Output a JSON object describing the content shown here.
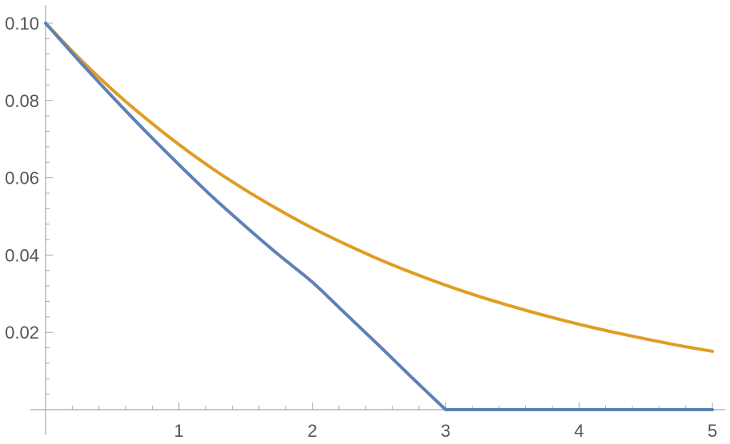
{
  "chart_data": {
    "type": "line",
    "title": "",
    "xlabel": "",
    "ylabel": "",
    "xlim": [
      0,
      5
    ],
    "ylim": [
      0,
      0.1
    ],
    "grid": false,
    "x_ticks": [
      {
        "value": 1,
        "label": "1"
      },
      {
        "value": 2,
        "label": "2"
      },
      {
        "value": 3,
        "label": "3"
      },
      {
        "value": 4,
        "label": "4"
      },
      {
        "value": 5,
        "label": "5"
      }
    ],
    "y_ticks": [
      {
        "value": 0.02,
        "label": "0.02"
      },
      {
        "value": 0.04,
        "label": "0.04"
      },
      {
        "value": 0.06,
        "label": "0.06"
      },
      {
        "value": 0.08,
        "label": "0.08"
      },
      {
        "value": 0.1,
        "label": "0.10"
      }
    ],
    "series": [
      {
        "color": "#5e81b5",
        "x": [
          0,
          0.25,
          0.5,
          0.75,
          1,
          1.25,
          1.5,
          1.75,
          2,
          2.25,
          2.5,
          2.75,
          3,
          3.5,
          4,
          4.5,
          5
        ],
        "y": [
          0.1,
          0.0903,
          0.081,
          0.072,
          0.0634,
          0.0551,
          0.0474,
          0.04,
          0.033,
          0.0248,
          0.0166,
          0.0082,
          0,
          0,
          0,
          0,
          0
        ]
      },
      {
        "color": "#e19c24",
        "x": [
          0,
          0.25,
          0.5,
          0.75,
          1,
          1.25,
          1.5,
          1.75,
          2,
          2.25,
          2.5,
          2.75,
          3,
          3.25,
          3.5,
          3.75,
          4,
          4.25,
          4.5,
          4.75,
          5
        ],
        "y": [
          0.1,
          0.091,
          0.0828,
          0.0754,
          0.0686,
          0.0624,
          0.0568,
          0.0517,
          0.047,
          0.0428,
          0.0389,
          0.0354,
          0.0322,
          0.0293,
          0.0267,
          0.0243,
          0.0221,
          0.0201,
          0.0183,
          0.0166,
          0.0151
        ]
      }
    ]
  }
}
